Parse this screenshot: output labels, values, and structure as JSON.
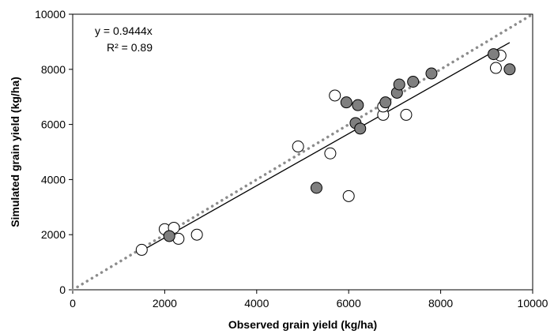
{
  "chart_data": {
    "type": "scatter",
    "xlabel": "Observed grain yield (kg/ha)",
    "ylabel": "Simulated grain yield (kg/ha)",
    "xlim": [
      0,
      10000
    ],
    "ylim": [
      0,
      10000
    ],
    "x_ticks": [
      "0",
      "2000",
      "4000",
      "6000",
      "8000",
      "10000"
    ],
    "y_ticks": [
      "0",
      "2000",
      "4000",
      "6000",
      "8000",
      "10000"
    ],
    "grid": false,
    "annotations": {
      "equation": "y = 0.9444x",
      "r_squared": "R² = 0.89"
    },
    "one_to_one_line": {
      "style": "dotted",
      "color": "#8c8c8c",
      "from": [
        0,
        0
      ],
      "to": [
        10000,
        10000
      ]
    },
    "regression_line": {
      "slope": 0.9444,
      "color": "#000000",
      "x_range": [
        1500,
        9500
      ]
    },
    "series": [
      {
        "marker": "open-circle",
        "fill": "#ffffff",
        "stroke": "#000000",
        "points": [
          [
            1500,
            1450
          ],
          [
            2000,
            2200
          ],
          [
            2200,
            2250
          ],
          [
            2300,
            1850
          ],
          [
            2700,
            2000
          ],
          [
            4900,
            5200
          ],
          [
            5600,
            4950
          ],
          [
            5700,
            7050
          ],
          [
            6000,
            3400
          ],
          [
            6750,
            6350
          ],
          [
            6750,
            6650
          ],
          [
            7250,
            6350
          ],
          [
            9200,
            8050
          ],
          [
            9300,
            8500
          ]
        ]
      },
      {
        "marker": "filled-circle",
        "fill": "#7f7f7f",
        "stroke": "#000000",
        "points": [
          [
            2100,
            1950
          ],
          [
            5300,
            3700
          ],
          [
            5950,
            6800
          ],
          [
            6150,
            6050
          ],
          [
            6200,
            6700
          ],
          [
            6250,
            5850
          ],
          [
            6800,
            6800
          ],
          [
            7050,
            7150
          ],
          [
            7100,
            7450
          ],
          [
            7400,
            7550
          ],
          [
            7800,
            7850
          ],
          [
            9150,
            8550
          ],
          [
            9500,
            8000
          ]
        ]
      }
    ]
  }
}
